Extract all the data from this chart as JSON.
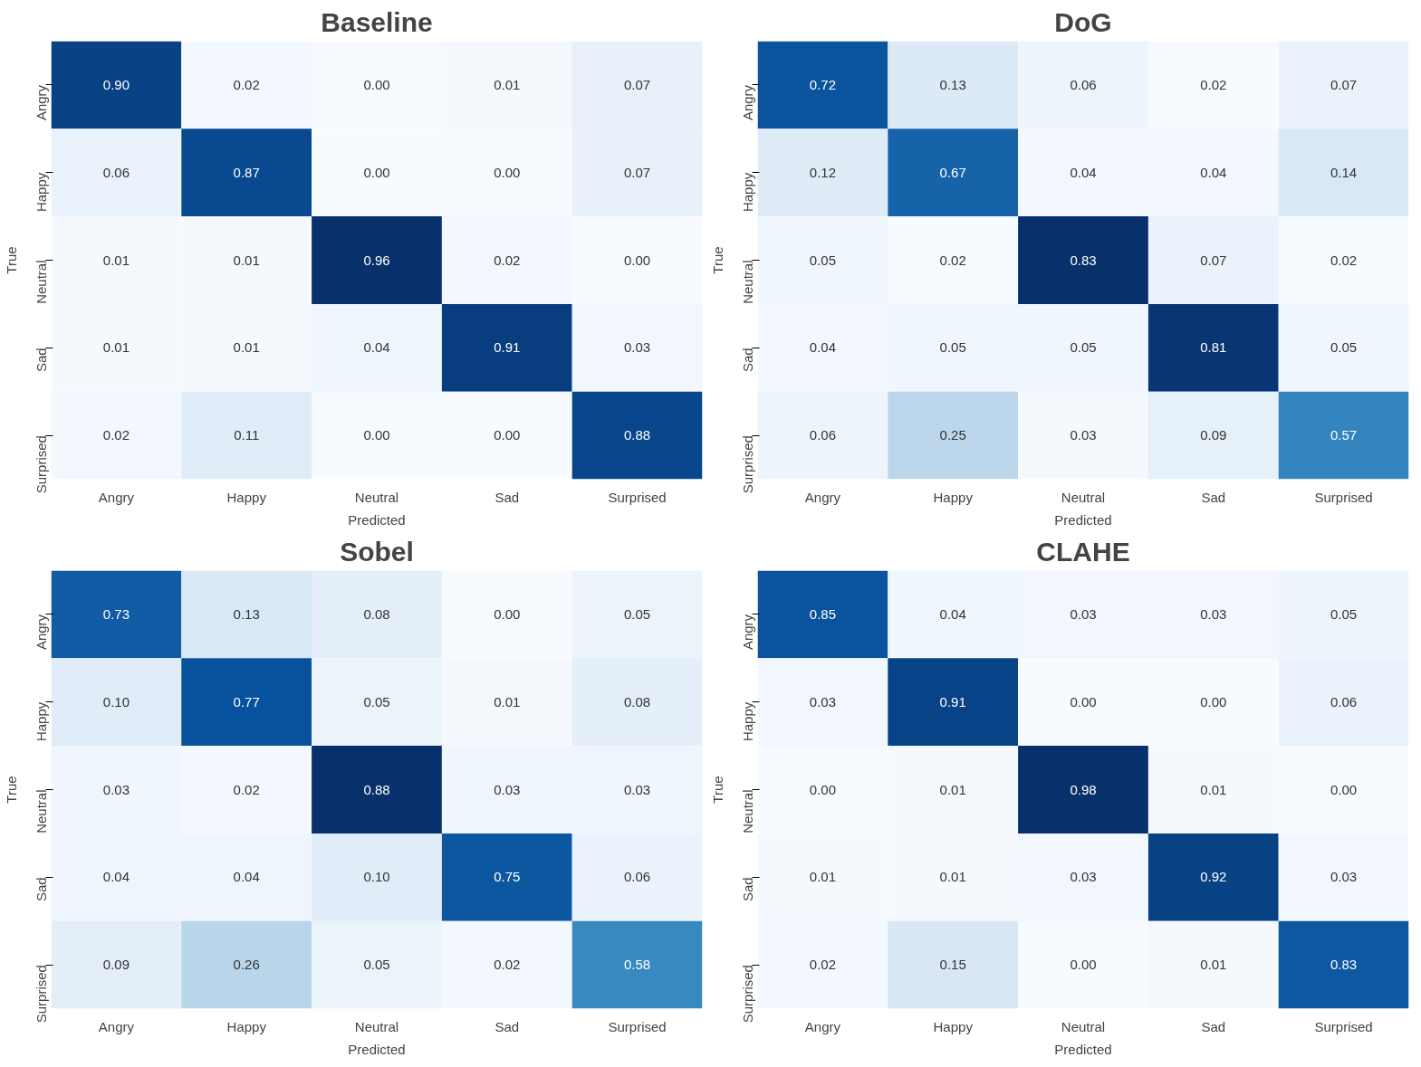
{
  "chart_data": [
    {
      "type": "heatmap",
      "title": "Baseline",
      "xlabel": "Predicted",
      "ylabel": "True",
      "data_labels": true,
      "categories": [
        "Angry",
        "Happy",
        "Neutral",
        "Sad",
        "Surprised"
      ],
      "y_categories": [
        "Angry",
        "Happy",
        "Neutral",
        "Sad",
        "Surprised"
      ],
      "cells": [
        [
          0.9,
          0.02,
          0.0,
          0.01,
          0.07
        ],
        [
          0.06,
          0.87,
          0.0,
          0.0,
          0.07
        ],
        [
          0.01,
          0.01,
          0.96,
          0.02,
          0.0
        ],
        [
          0.01,
          0.01,
          0.04,
          0.91,
          0.03
        ],
        [
          0.02,
          0.11,
          0.0,
          0.0,
          0.88
        ]
      ],
      "cell_labels": [
        [
          "0.90",
          "0.02",
          "0.00",
          "0.01",
          "0.07"
        ],
        [
          "0.06",
          "0.87",
          "0.00",
          "0.00",
          "0.07"
        ],
        [
          "0.01",
          "0.01",
          "0.96",
          "0.02",
          "0.00"
        ],
        [
          "0.01",
          "0.01",
          "0.04",
          "0.91",
          "0.03"
        ],
        [
          "0.02",
          "0.11",
          "0.00",
          "0.00",
          "0.88"
        ]
      ]
    },
    {
      "type": "heatmap",
      "title": "DoG",
      "xlabel": "Predicted",
      "ylabel": "True",
      "data_labels": true,
      "categories": [
        "Angry",
        "Happy",
        "Neutral",
        "Sad",
        "Surprised"
      ],
      "y_categories": [
        "Angry",
        "Happy",
        "Neutral",
        "Sad",
        "Surprised"
      ],
      "cells": [
        [
          0.72,
          0.13,
          0.06,
          0.02,
          0.07
        ],
        [
          0.12,
          0.67,
          0.04,
          0.04,
          0.14
        ],
        [
          0.05,
          0.02,
          0.83,
          0.07,
          0.02
        ],
        [
          0.04,
          0.05,
          0.05,
          0.81,
          0.05
        ],
        [
          0.06,
          0.25,
          0.03,
          0.09,
          0.57
        ]
      ]
    },
    {
      "type": "heatmap",
      "title": "Sobel",
      "xlabel": "Predicted",
      "ylabel": "True",
      "data_labels": true,
      "categories": [
        "Angry",
        "Happy",
        "Neutral",
        "Sad",
        "Surprised"
      ],
      "y_categories": [
        "Angry",
        "Happy",
        "Neutral",
        "Sad",
        "Surprised"
      ],
      "cells": [
        [
          0.73,
          0.13,
          0.08,
          0.0,
          0.05
        ],
        [
          0.1,
          0.77,
          0.05,
          0.01,
          0.08
        ],
        [
          0.03,
          0.02,
          0.88,
          0.03,
          0.03
        ],
        [
          0.04,
          0.04,
          0.1,
          0.75,
          0.06
        ],
        [
          0.09,
          0.26,
          0.05,
          0.02,
          0.58
        ]
      ],
      "cell_labels": [
        [
          "0.73",
          "0.13",
          "0.08",
          "0.00",
          "0.05"
        ],
        [
          "0.10",
          "0.77",
          "0.05",
          "0.01",
          "0.08"
        ],
        [
          "0.03",
          "0.02",
          "0.88",
          "0.03",
          "0.03"
        ],
        [
          "0.04",
          "0.04",
          "0.10",
          "0.75",
          "0.06"
        ],
        [
          "0.09",
          "0.26",
          "0.05",
          "0.02",
          "0.58"
        ]
      ]
    },
    {
      "type": "heatmap",
      "title": "CLAHE",
      "xlabel": "Predicted",
      "ylabel": "True",
      "data_labels": true,
      "categories": [
        "Angry",
        "Happy",
        "Neutral",
        "Sad",
        "Surprised"
      ],
      "y_categories": [
        "Angry",
        "Happy",
        "Neutral",
        "Sad",
        "Surprised"
      ],
      "cells": [
        [
          0.85,
          0.04,
          0.03,
          0.03,
          0.05
        ],
        [
          0.03,
          0.91,
          0.0,
          0.0,
          0.06
        ],
        [
          0.0,
          0.01,
          0.98,
          0.01,
          0.0
        ],
        [
          0.01,
          0.01,
          0.03,
          0.92,
          0.03
        ],
        [
          0.02,
          0.15,
          0.0,
          0.01,
          0.83
        ]
      ],
      "cell_labels": [
        [
          "0.85",
          "0.04",
          "0.03",
          "0.03",
          "0.05"
        ],
        [
          "0.03",
          "0.91",
          "0.00",
          "0.00",
          "0.06"
        ],
        [
          "0.00",
          "0.01",
          "0.98",
          "0.01",
          "0.00"
        ],
        [
          "0.01",
          "0.01",
          "0.03",
          "0.92",
          "0.03"
        ],
        [
          "0.02",
          "0.15",
          "0.00",
          "0.01",
          "0.83"
        ]
      ]
    }
  ]
}
